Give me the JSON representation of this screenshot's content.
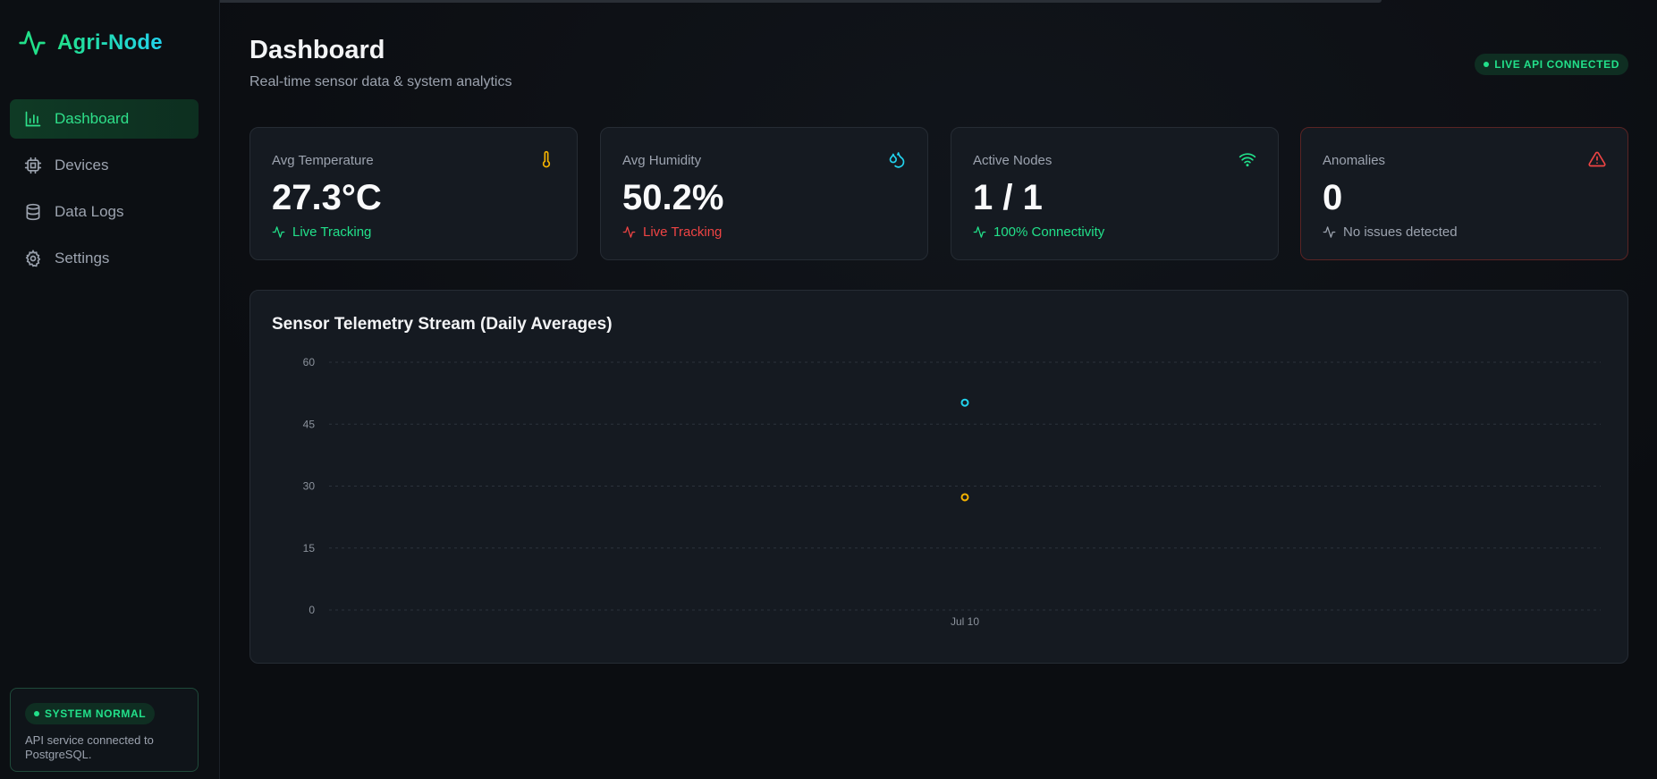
{
  "app": {
    "brand": "Agri-Node"
  },
  "sidebar": {
    "items": [
      {
        "label": "Dashboard",
        "icon": "bar-chart-icon",
        "active": true
      },
      {
        "label": "Devices",
        "icon": "cpu-icon",
        "active": false
      },
      {
        "label": "Data Logs",
        "icon": "database-icon",
        "active": false
      },
      {
        "label": "Settings",
        "icon": "gear-icon",
        "active": false
      }
    ],
    "status": {
      "badge": "SYSTEM NORMAL",
      "text": "API service connected to PostgreSQL."
    }
  },
  "header": {
    "title": "Dashboard",
    "subtitle": "Real-time sensor data & system analytics",
    "live_badge": "LIVE API CONNECTED"
  },
  "cards": [
    {
      "label": "Avg Temperature",
      "value": "27.3°C",
      "foot": "Live Tracking",
      "icon": "thermometer-icon",
      "icon_color": "#f5b301",
      "foot_color": "#22e08a"
    },
    {
      "label": "Avg Humidity",
      "value": "50.2%",
      "foot": "Live Tracking",
      "icon": "droplets-icon",
      "icon_color": "#22d3ee",
      "foot_color": "#ef4444"
    },
    {
      "label": "Active Nodes",
      "value": "1 / 1",
      "foot": "100% Connectivity",
      "icon": "wifi-icon",
      "icon_color": "#22e08a",
      "foot_color": "#22e08a"
    },
    {
      "label": "Anomalies",
      "value": "0",
      "foot": "No issues detected",
      "icon": "alert-triangle-icon",
      "icon_color": "#ef4444",
      "foot_color": "#9ca3af"
    }
  ],
  "chart_data": {
    "type": "line",
    "title": "Sensor Telemetry Stream (Daily Averages)",
    "categories": [
      "Jul 10"
    ],
    "ylim": [
      0,
      60
    ],
    "yticks": [
      0,
      15,
      30,
      45,
      60
    ],
    "grid": true,
    "series": [
      {
        "values": [
          50.2
        ],
        "color": "#22d3ee"
      },
      {
        "values": [
          27.3
        ],
        "color": "#f5b301"
      }
    ]
  }
}
